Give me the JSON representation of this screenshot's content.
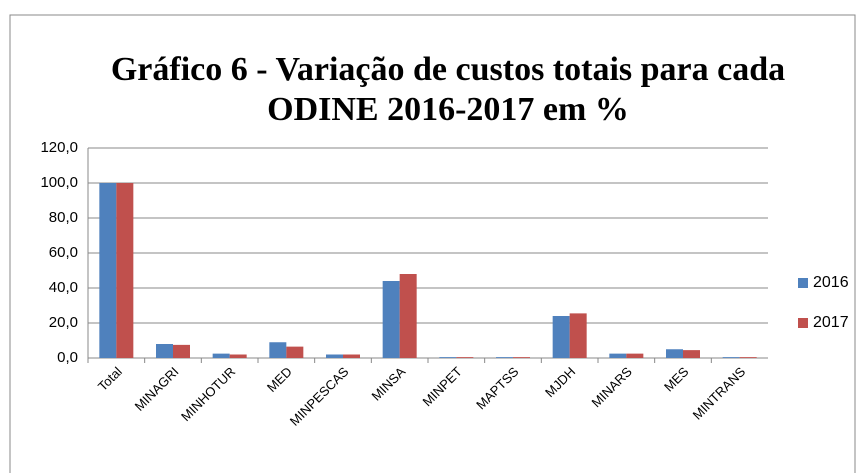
{
  "chart_data": {
    "type": "bar",
    "title": [
      "Gráfico 6 - Variação de custos totais para cada",
      "ODINE 2016-2017 em %"
    ],
    "categories": [
      "Total",
      "MINAGRI",
      "MINHOTUR",
      "MED",
      "MINPESCAS",
      "MINSA",
      "MINPET",
      "MAPTSS",
      "MJDH",
      "MINARS",
      "MES",
      "MINTRANS"
    ],
    "series": [
      {
        "name": "2016",
        "color": "#4f81bd",
        "values": [
          100,
          8,
          2.5,
          9,
          2,
          44,
          0.5,
          0.5,
          24,
          2.5,
          5,
          0.5
        ]
      },
      {
        "name": "2017",
        "color": "#c0504d",
        "values": [
          100,
          7.5,
          2,
          6.5,
          2,
          48,
          0.5,
          0.5,
          25.5,
          2.5,
          4.5,
          0.5
        ]
      }
    ],
    "ylim": [
      0,
      120
    ],
    "yticks": [
      {
        "value": 0,
        "label": "0,0"
      },
      {
        "value": 20,
        "label": "20,0"
      },
      {
        "value": 40,
        "label": "40,0"
      },
      {
        "value": 60,
        "label": "60,0"
      },
      {
        "value": 80,
        "label": "80,0"
      },
      {
        "value": 100,
        "label": "100,0"
      },
      {
        "value": 120,
        "label": "120,0"
      }
    ],
    "grid": true,
    "legend": "right"
  }
}
